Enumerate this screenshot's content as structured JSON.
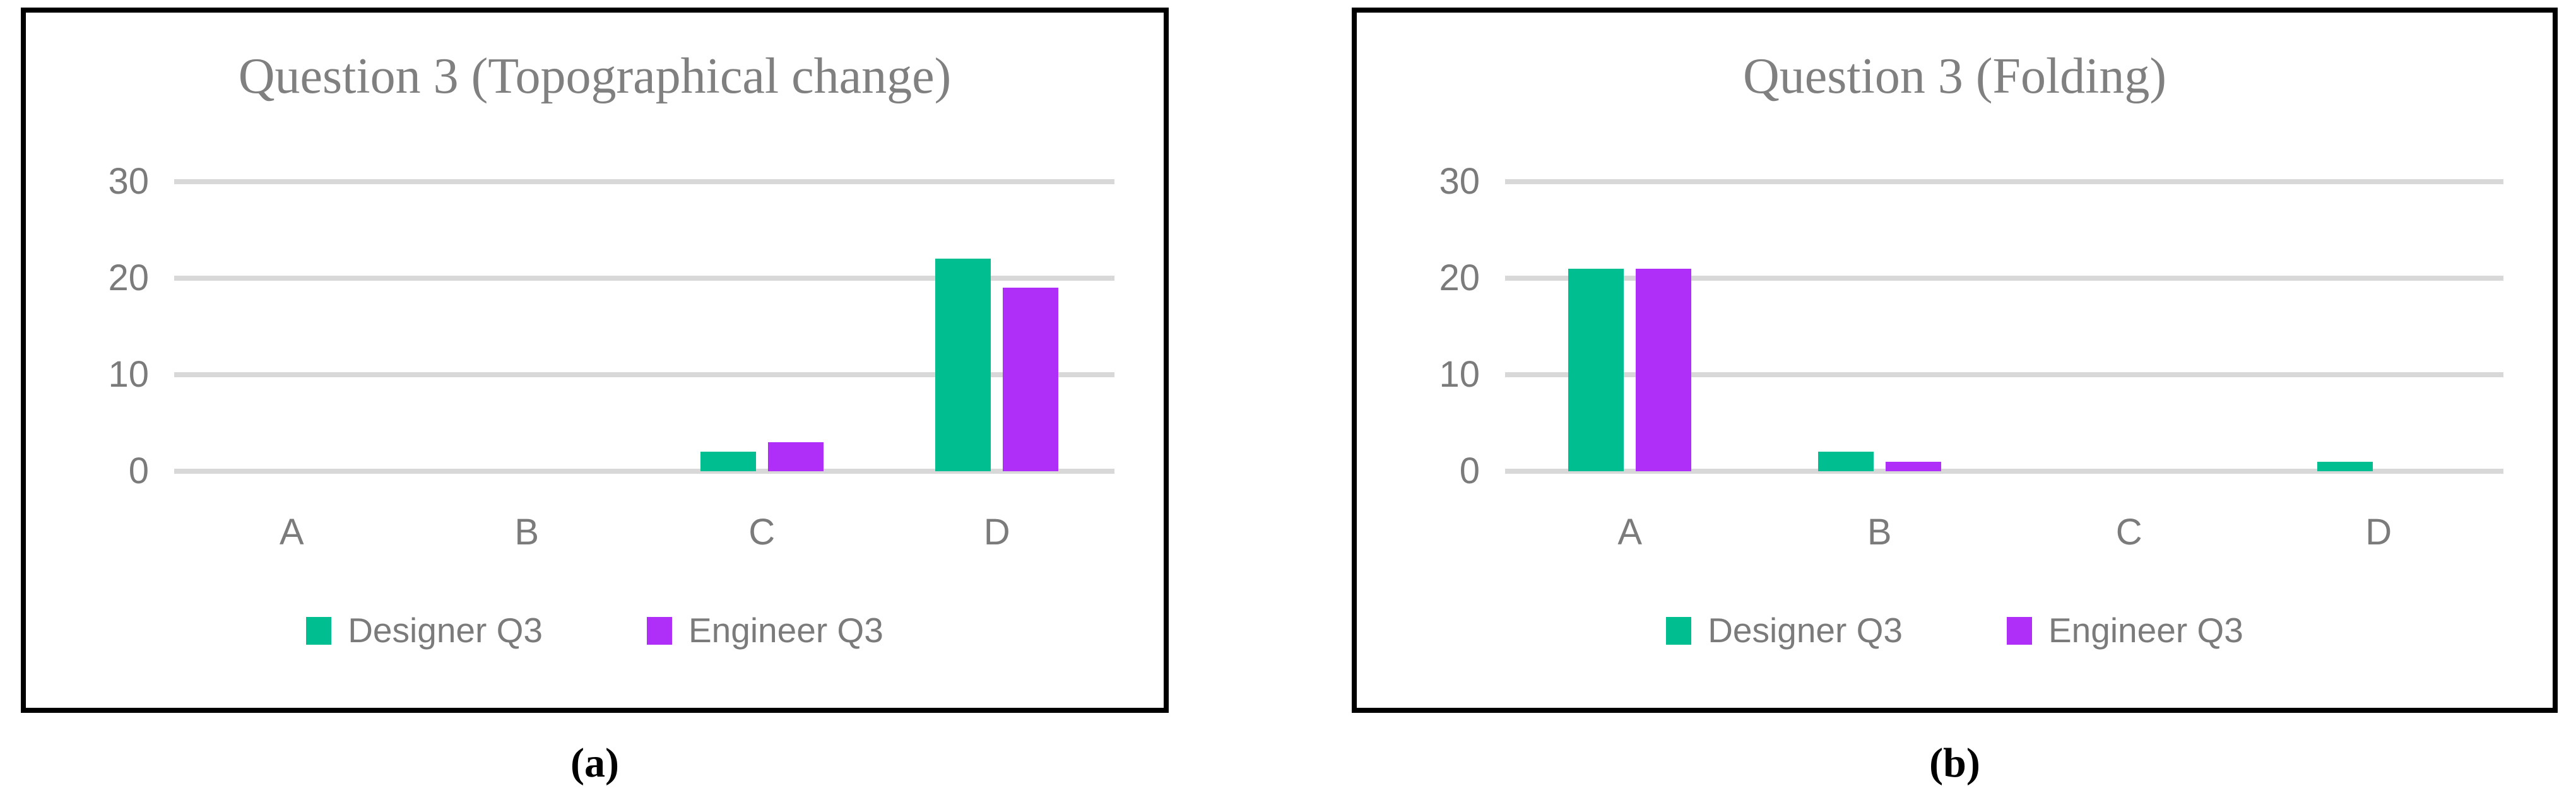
{
  "figure": {
    "panel_count": 2,
    "captions": {
      "a": "(a)",
      "b": "(b)"
    }
  },
  "colors": {
    "designer_series": "#00BE8F",
    "engineer_series": "#AF2FF9",
    "gridline": "#D8D8D8",
    "axis_text": "#7B7B7B",
    "title_text": "#808080",
    "panel_border": "#000000",
    "caption_text": "#000000"
  },
  "chart_data": [
    {
      "type": "bar",
      "title": "Question 3 (Topographical change)",
      "categories": [
        "A",
        "B",
        "C",
        "D"
      ],
      "series": [
        {
          "name": "Designer Q3",
          "color": "#00BE8F",
          "values": [
            0,
            0,
            2,
            22
          ]
        },
        {
          "name": "Engineer Q3",
          "color": "#AF2FF9",
          "values": [
            0,
            0,
            3,
            19
          ]
        }
      ],
      "xlabel": "",
      "ylabel": "",
      "ylim": [
        0,
        30
      ],
      "yticks": [
        30,
        20,
        10,
        0
      ],
      "grid": true,
      "legend_position": "bottom"
    },
    {
      "type": "bar",
      "title": "Question 3 (Folding)",
      "categories": [
        "A",
        "B",
        "C",
        "D"
      ],
      "series": [
        {
          "name": "Designer Q3",
          "color": "#00BE8F",
          "values": [
            21,
            2,
            0,
            1
          ]
        },
        {
          "name": "Engineer Q3",
          "color": "#AF2FF9",
          "values": [
            21,
            1,
            0,
            0
          ]
        }
      ],
      "xlabel": "",
      "ylabel": "",
      "ylim": [
        0,
        30
      ],
      "yticks": [
        30,
        20,
        10,
        0
      ],
      "grid": true,
      "legend_position": "bottom"
    }
  ]
}
